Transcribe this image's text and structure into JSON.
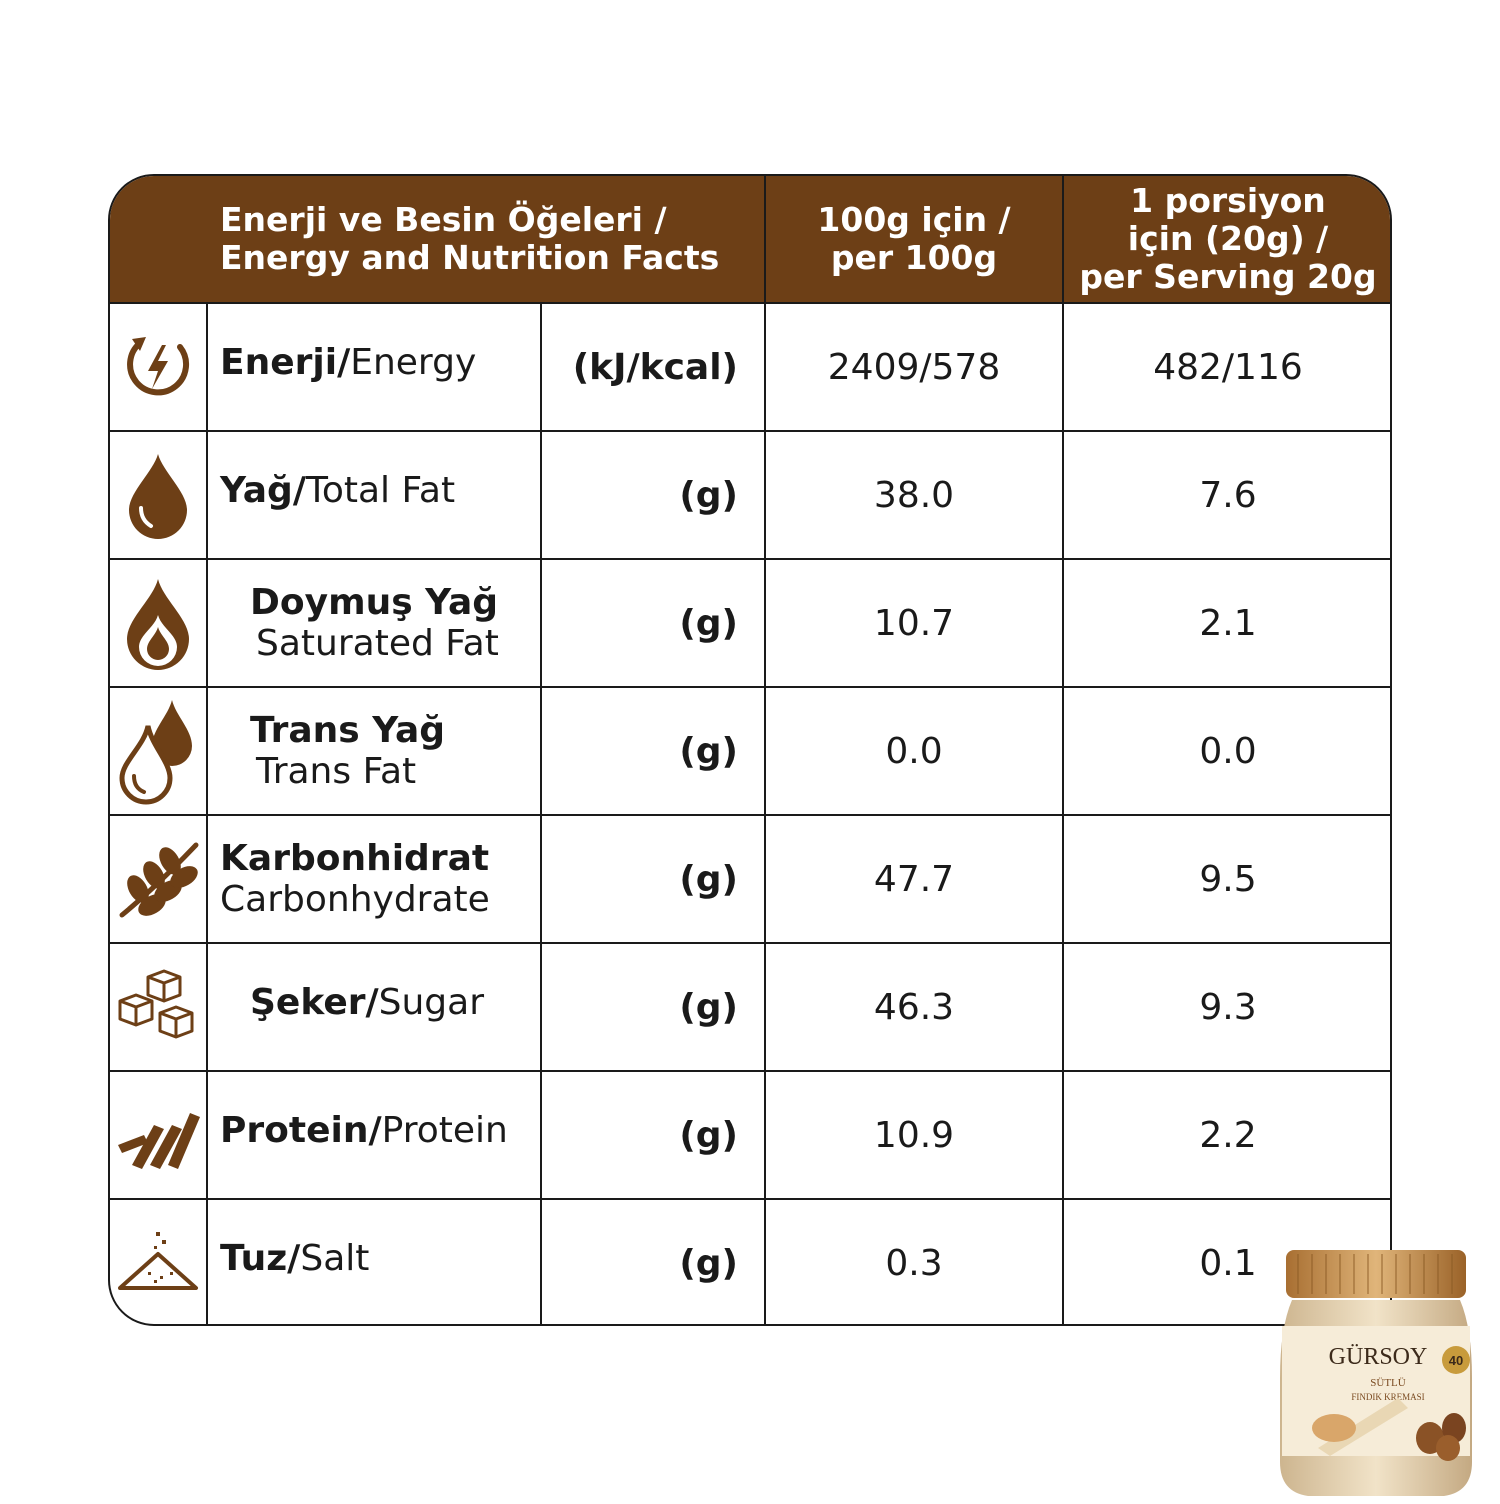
{
  "header": {
    "col_nutrients": "Enerji ve Besin Öğeleri /\nEnergy and Nutrition Facts",
    "col_per100": "100g için /\nper 100g",
    "col_serving": "1 porsiyon\niçin (20g) /\nper Serving 20g"
  },
  "rows": [
    {
      "icon": "energy-icon",
      "name_tr": "Enerji/",
      "name_en": "Energy",
      "unit": "(kJ/kcal)",
      "per100": "2409/578",
      "serving": "482/116"
    },
    {
      "icon": "fat-drop-icon",
      "name_tr": "Yağ/",
      "name_en": "Total Fat",
      "unit": "(g)",
      "per100": "38.0",
      "serving": "7.6"
    },
    {
      "icon": "saturated-fat-icon",
      "name_tr": "Doymuş Yağ",
      "name_en": "Saturated Fat",
      "unit": "(g)",
      "per100": "10.7",
      "serving": "2.1"
    },
    {
      "icon": "trans-fat-icon",
      "name_tr": "Trans Yağ",
      "name_en": "Trans Fat",
      "unit": "(g)",
      "per100": "0.0",
      "serving": "0.0"
    },
    {
      "icon": "wheat-icon",
      "name_tr": "Karbonhidrat",
      "name_en": "Carbonhydrate",
      "unit": "(g)",
      "per100": "47.7",
      "serving": "9.5"
    },
    {
      "icon": "sugar-cubes-icon",
      "name_tr": "Şeker/",
      "name_en": "Sugar",
      "unit": "(g)",
      "per100": "46.3",
      "serving": "9.3"
    },
    {
      "icon": "protein-icon",
      "name_tr": "Protein/",
      "name_en": "Protein",
      "unit": "(g)",
      "per100": "10.9",
      "serving": "2.2"
    },
    {
      "icon": "salt-icon",
      "name_tr": "Tuz/",
      "name_en": "Salt",
      "unit": "(g)",
      "per100": "0.3",
      "serving": "0.1"
    }
  ],
  "product": {
    "brand": "GÜRSOY",
    "line1": "SÜTLÜ",
    "line2": "FINDIK KREMASI",
    "badge": "40"
  },
  "colors": {
    "header_bg": "#6d3f16",
    "icon": "#6d3f16",
    "border": "#1a1a1a"
  }
}
